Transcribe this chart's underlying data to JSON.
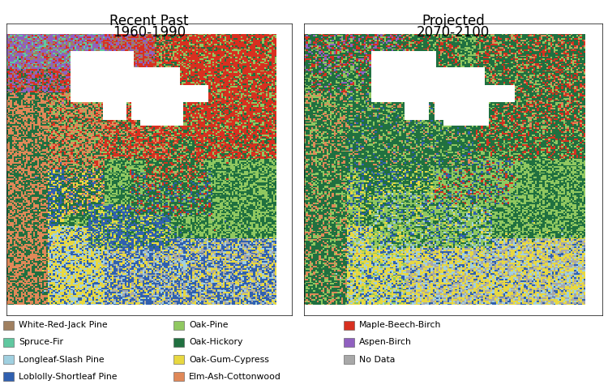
{
  "title_left": "Recent Past",
  "subtitle_left": "1960-1990",
  "title_right": "Projected",
  "subtitle_right": "2070-2100",
  "title_fontsize": 12,
  "background_color": "#ffffff",
  "legend_items": [
    {
      "label": "White-Red-Jack Pine",
      "color": "#a08060"
    },
    {
      "label": "Spruce-Fir",
      "color": "#60c8a0"
    },
    {
      "label": "Longleaf-Slash Pine",
      "color": "#a0d0e0"
    },
    {
      "label": "Loblolly-Shortleaf Pine",
      "color": "#3060b0"
    },
    {
      "label": "Oak-Pine",
      "color": "#90c860"
    },
    {
      "label": "Oak-Hickory",
      "color": "#207040"
    },
    {
      "label": "Oak-Gum-Cypress",
      "color": "#e8d840"
    },
    {
      "label": "Elm-Ash-Cottonwood",
      "color": "#e08858"
    },
    {
      "label": "Maple-Beech-Birch",
      "color": "#d83020"
    },
    {
      "label": "Aspen-Birch",
      "color": "#9060c0"
    },
    {
      "label": "No Data",
      "color": "#a8a8a8"
    }
  ]
}
